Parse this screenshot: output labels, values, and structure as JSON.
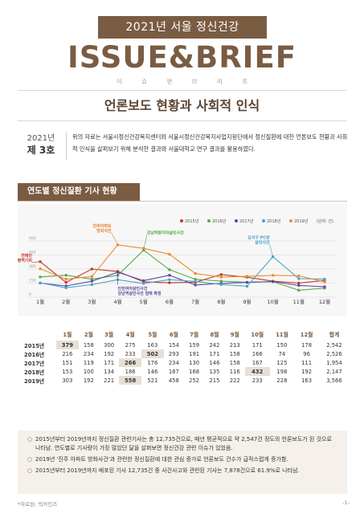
{
  "header": {
    "banner": "2021년 서울 정신건강",
    "title": "ISSUE&BRIEF",
    "subtitle": "이 슈 앤 브 리 프",
    "headline": "언론보도 현황과 사회적 인식"
  },
  "issue": {
    "year": "2021년",
    "number": "제 3호"
  },
  "intro": "위의 자료는 서울시정신건강복지센터와 서울시정신건강복지사업지원단에서 정신질환에 대한 언론보도 현황과 사회적 인식을 살펴보기 위해 분석한 결과와 서울대학교 연구 결과를 활용하였다.",
  "section_title": "연도별 정신질환 기사 현황",
  "chart_data": {
    "type": "line",
    "categories": [
      "1월",
      "2월",
      "3월",
      "4월",
      "5월",
      "6월",
      "7월",
      "8월",
      "9월",
      "10월",
      "11월",
      "12월"
    ],
    "unit": "(단위: 건)",
    "yticks": [
      0,
      150,
      300,
      450,
      600
    ],
    "ylim": [
      0,
      600
    ],
    "grid": true,
    "legend_position": "top-right",
    "series": [
      {
        "name": "2015년",
        "color": "#c0392b",
        "values": [
          379,
          158,
          300,
          275,
          163,
          154,
          159,
          242,
          213,
          171,
          150,
          178
        ]
      },
      {
        "name": "2016년",
        "color": "#5aa84a",
        "values": [
          216,
          234,
          192,
          233,
          502,
          293,
          191,
          171,
          158,
          166,
          74,
          96
        ]
      },
      {
        "name": "2017년",
        "color": "#5b4a9e",
        "values": [
          151,
          119,
          171,
          266,
          176,
          234,
          130,
          146,
          158,
          167,
          125,
          111
        ]
      },
      {
        "name": "2018년",
        "color": "#4aa3c7",
        "values": [
          153,
          100,
          134,
          186,
          146,
          187,
          168,
          135,
          116,
          432,
          198,
          192
        ]
      },
      {
        "name": "2019년",
        "color": "#ef8c2f",
        "values": [
          303,
          192,
          221,
          558,
          521,
          458,
          252,
          215,
          222,
          233,
          228,
          163
        ]
      }
    ],
    "annotations": [
      {
        "text": "연예인\n병역기피",
        "month_index": 0,
        "value": 379,
        "color": "#c0392b"
      },
      {
        "text": "진주아파트\n방화사건",
        "month_index": 3,
        "value": 558,
        "color": "#e67e22"
      },
      {
        "text": "강남역묻지마살인사건",
        "month_index": 4,
        "value": 502,
        "color": "#5aa84a"
      },
      {
        "text": "인천여아살인사건\n강남역살인사건 첨택 확정",
        "month_index": 3,
        "value": 266,
        "color": "#5b4a9e"
      },
      {
        "text": "강서구 PC방\n살인사건",
        "month_index": 9,
        "value": 432,
        "color": "#4aa3c7"
      }
    ]
  },
  "table": {
    "header": [
      "",
      "1월",
      "2월",
      "3월",
      "4월",
      "5월",
      "6월",
      "7월",
      "8월",
      "9월",
      "10월",
      "11월",
      "12월",
      "합계"
    ],
    "rows": [
      {
        "year": "2015년",
        "cells": [
          "379",
          "158",
          "300",
          "275",
          "163",
          "154",
          "159",
          "242",
          "213",
          "171",
          "150",
          "178",
          "2,542"
        ],
        "highlight": 0
      },
      {
        "year": "2016년",
        "cells": [
          "216",
          "234",
          "192",
          "233",
          "502",
          "293",
          "191",
          "171",
          "158",
          "166",
          "74",
          "96",
          "2,526"
        ],
        "highlight": 4
      },
      {
        "year": "2017년",
        "cells": [
          "151",
          "119",
          "171",
          "266",
          "176",
          "234",
          "130",
          "146",
          "158",
          "167",
          "125",
          "111",
          "1,954"
        ],
        "highlight": 3
      },
      {
        "year": "2018년",
        "cells": [
          "153",
          "100",
          "134",
          "186",
          "146",
          "187",
          "168",
          "135",
          "116",
          "432",
          "198",
          "192",
          "2,147"
        ],
        "highlight": 9
      },
      {
        "year": "2019년",
        "cells": [
          "303",
          "192",
          "221",
          "558",
          "521",
          "458",
          "252",
          "215",
          "222",
          "233",
          "228",
          "163",
          "3,566"
        ],
        "highlight": 3
      }
    ]
  },
  "notes": [
    "2015년부터 2019년까지 정신질환 관련기사는 총 12,735건으로, 매년 평균적으로 약 2,547건 정도의 언론보도가 된 것으로 나타남. 연도별로 기사량이 가장 많았던 달을 살펴보면 정신건강 관련 이슈가 있었음.",
    "2019년 '진주 아파트 방화사건'과 관련한 정신질환에 대한 관심 증가로 언론보도 건수가 급작스럽게 증가함.",
    "2015년부터 2019년까지 배포된 기사 12,735건 중 사건사고와 관련된 기사는 7,878건으로 61.9%로 나타남."
  ],
  "note_bullet": "○",
  "source": "*자료원: 빅카인즈",
  "page_number": "-1-"
}
